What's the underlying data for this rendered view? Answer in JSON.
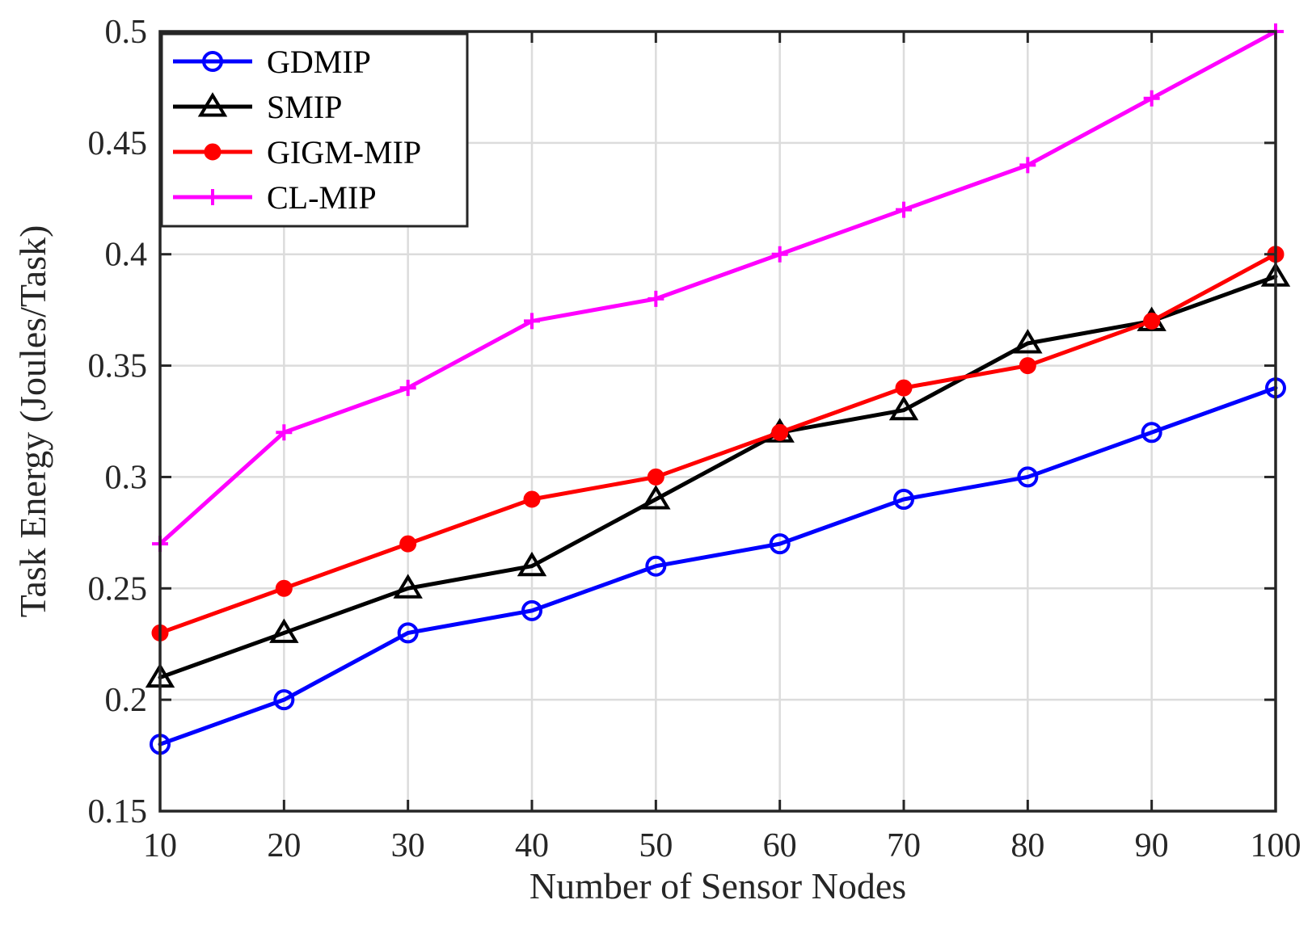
{
  "chart_data": {
    "type": "line",
    "title": "",
    "xlabel": "Number of Sensor Nodes",
    "ylabel": "Task Energy (Joules/Task)",
    "x": [
      10,
      20,
      30,
      40,
      50,
      60,
      70,
      80,
      90,
      100
    ],
    "xlim": [
      10,
      100
    ],
    "ylim": [
      0.15,
      0.5
    ],
    "xticks": [
      10,
      20,
      30,
      40,
      50,
      60,
      70,
      80,
      90,
      100
    ],
    "xtick_labels": [
      "10",
      "20",
      "30",
      "40",
      "50",
      "60",
      "70",
      "80",
      "90",
      "100"
    ],
    "yticks": [
      0.15,
      0.2,
      0.25,
      0.3,
      0.35,
      0.4,
      0.45,
      0.5
    ],
    "ytick_labels": [
      "0.15",
      "0.2",
      "0.25",
      "0.3",
      "0.35",
      "0.4",
      "0.45",
      "0.5"
    ],
    "grid": true,
    "legend_position": "top-left",
    "series": [
      {
        "name": "GDMIP",
        "color": "#0000ff",
        "marker": "circle-open",
        "values": [
          0.18,
          0.2,
          0.23,
          0.24,
          0.26,
          0.27,
          0.29,
          0.3,
          0.32,
          0.34
        ]
      },
      {
        "name": "SMIP",
        "color": "#000000",
        "marker": "triangle-open",
        "values": [
          0.21,
          0.23,
          0.25,
          0.26,
          0.29,
          0.32,
          0.33,
          0.36,
          0.37,
          0.39
        ]
      },
      {
        "name": "GIGM-MIP",
        "color": "#ff0000",
        "marker": "dot-filled",
        "values": [
          0.23,
          0.25,
          0.27,
          0.29,
          0.3,
          0.32,
          0.34,
          0.35,
          0.37,
          0.4
        ]
      },
      {
        "name": "CL-MIP",
        "color": "#ff00ff",
        "marker": "plus",
        "values": [
          0.27,
          0.32,
          0.34,
          0.37,
          0.38,
          0.4,
          0.42,
          0.44,
          0.47,
          0.5
        ]
      }
    ]
  }
}
